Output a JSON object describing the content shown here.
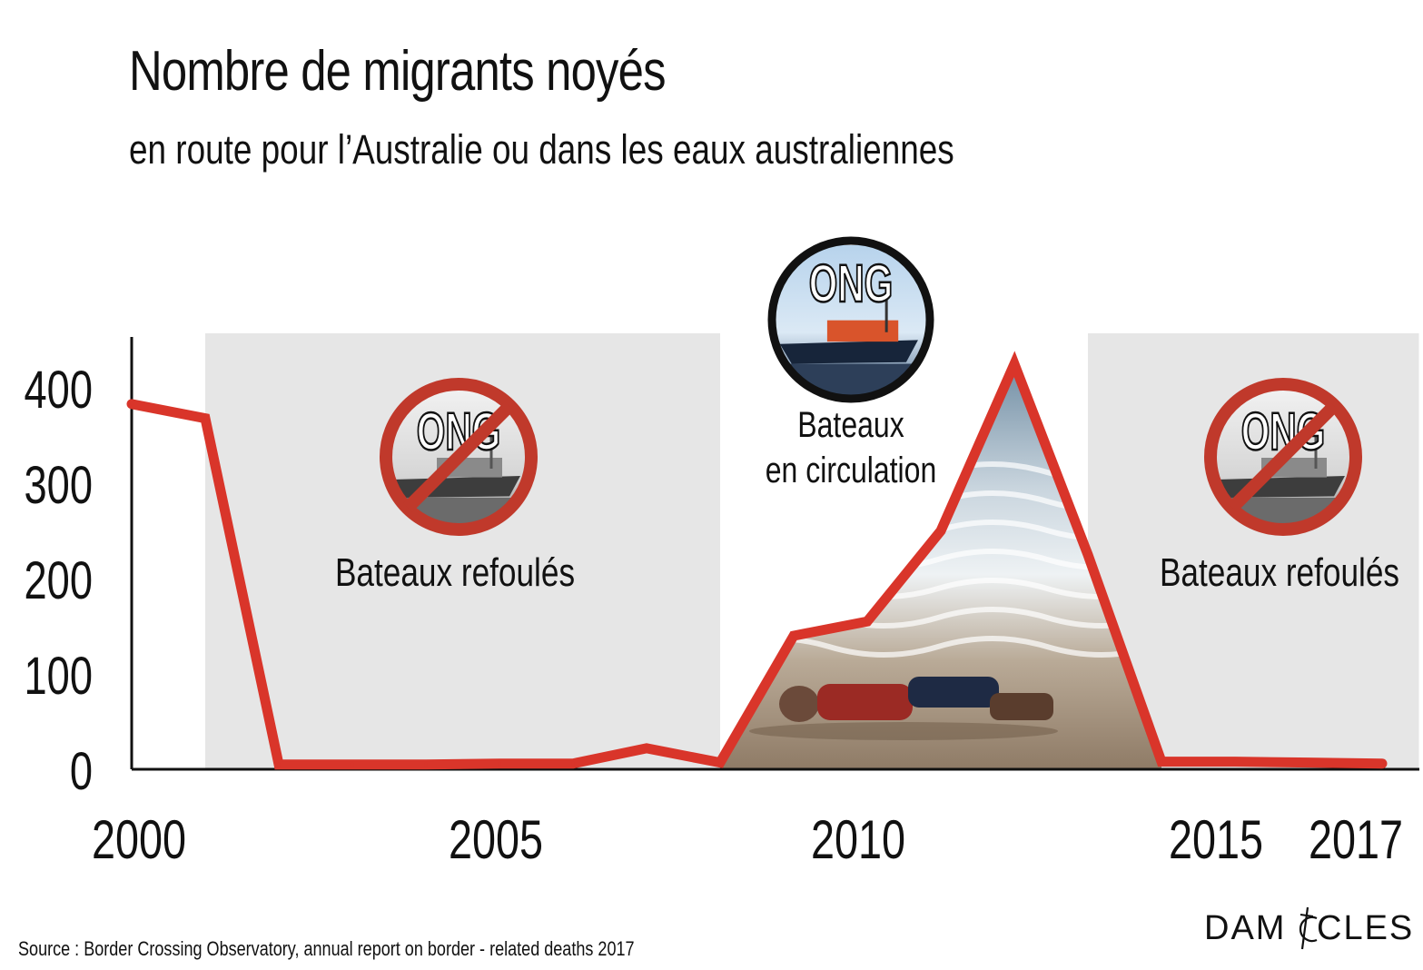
{
  "chart_data": {
    "type": "line",
    "title": "Nombre de migrants noyés",
    "subtitle": "en route pour l’Australie ou dans les eaux australiennes",
    "xlabel": "",
    "ylabel": "",
    "x": [
      2000,
      2001,
      2002,
      2003,
      2004,
      2005,
      2006,
      2007,
      2008,
      2009,
      2010,
      2011,
      2012,
      2013,
      2014,
      2015,
      2016,
      2017
    ],
    "series": [
      {
        "values": [
          383,
          368,
          5,
          5,
          5,
          6,
          6,
          22,
          7,
          140,
          155,
          250,
          425,
          225,
          8,
          8,
          7,
          6
        ],
        "color": "#d9352a"
      }
    ],
    "xlim": [
      2000,
      2017.5
    ],
    "ylim": [
      0,
      445
    ],
    "x_ticks": [
      2000,
      2005,
      2010,
      2015,
      2017
    ],
    "x_tick_labels": [
      "2000",
      "2005",
      "2010",
      "2015",
      "2017"
    ],
    "y_ticks": [
      0,
      100,
      200,
      300,
      400
    ],
    "y_tick_labels": [
      "0",
      "100",
      "200",
      "300",
      "400"
    ],
    "grid": false,
    "legend": "none",
    "shaded_periods": [
      {
        "start": 2001,
        "end": 2008,
        "label": "Bateaux refoulés",
        "badge_text": "ONG",
        "badge_type": "prohibited-boat"
      },
      {
        "start": 2013,
        "end": 2017.5,
        "label": "Bateaux refoulés",
        "badge_text": "ONG",
        "badge_type": "prohibited-boat"
      }
    ],
    "open_period": {
      "start": 2008,
      "end": 2013,
      "label_line1": "Bateaux",
      "label_line2": "en circulation",
      "badge_text": "ONG",
      "badge_type": "boat"
    },
    "shade_color": "#e6e6e6"
  },
  "source": "Source : Border Crossing Observatory, annual report on border - related deaths 2017",
  "logo": {
    "left": "DAM",
    "right": "CLES"
  }
}
